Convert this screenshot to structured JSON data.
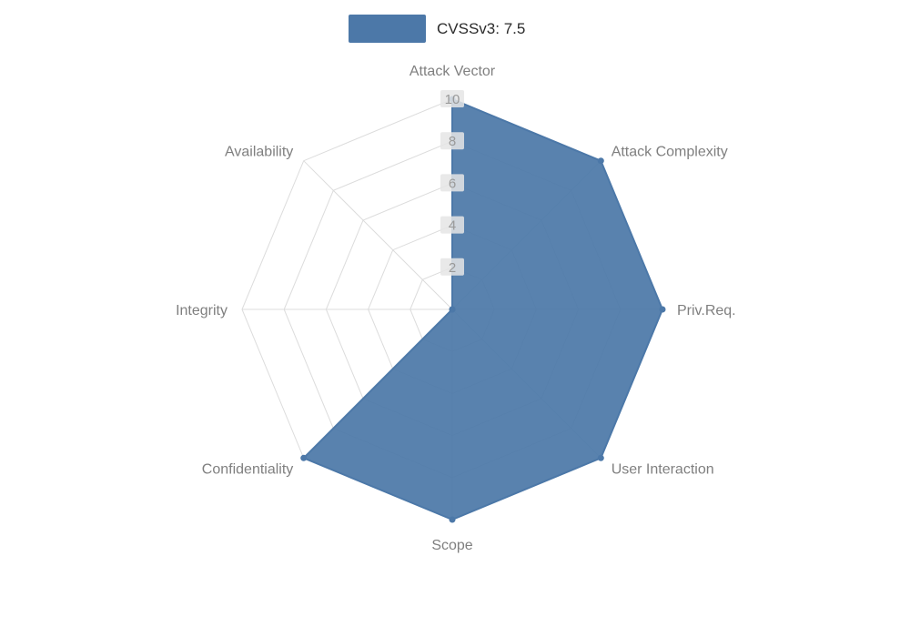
{
  "legend": {
    "label": "CVSSv3: 7.5",
    "swatch_color": "#4c78a8"
  },
  "chart_data": {
    "type": "radar",
    "title": "CVSSv3: 7.5",
    "categories": [
      "Attack Vector",
      "Attack Complexity",
      "Priv.Req.",
      "User Interaction",
      "Scope",
      "Confidentiality",
      "Integrity",
      "Availability"
    ],
    "series": [
      {
        "name": "CVSSv3: 7.5",
        "values": [
          10,
          10,
          10,
          10,
          10,
          10,
          0,
          0
        ]
      }
    ],
    "max": 10,
    "ticks": [
      2,
      4,
      6,
      8,
      10
    ],
    "grid": "on",
    "legend_position": "top",
    "fill_color": "#4c78a8",
    "stroke_color": "#4c78a8",
    "grid_color": "#dcdcdc",
    "axis_label_color": "#7f7f7f",
    "tick_label_color": "#999999",
    "tick_label_bg": "#e5e5e5"
  }
}
